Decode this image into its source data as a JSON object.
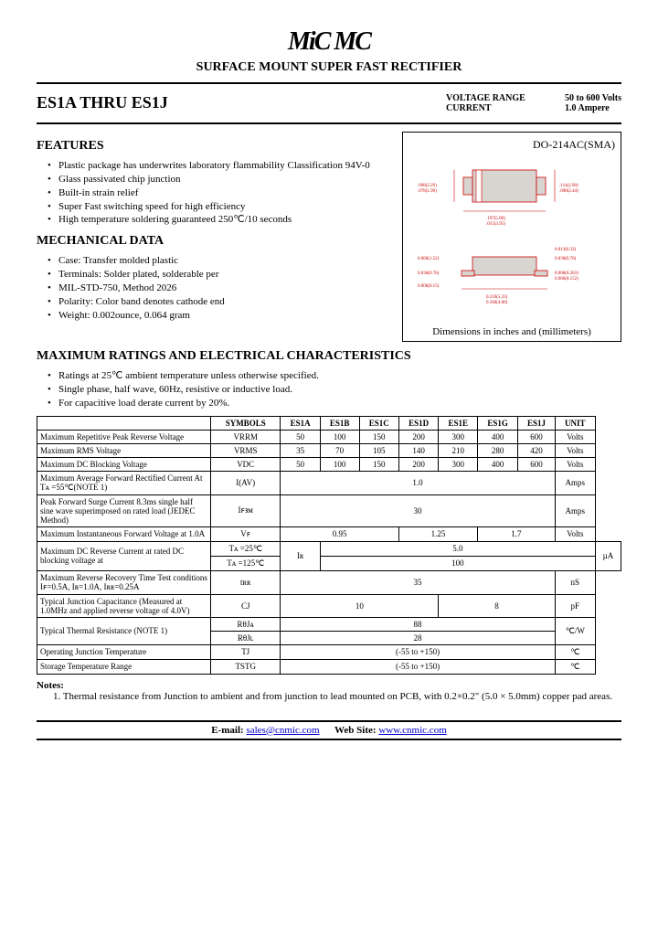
{
  "header": {
    "logo": "MiC MC",
    "subtitle": "SURFACE MOUNT SUPER FAST RECTIFIER"
  },
  "title": {
    "product": "ES1A THRU ES1J",
    "voltage_label": "VOLTAGE RANGE",
    "voltage_val": "50 to 600 Volts",
    "current_label": "CURRENT",
    "current_val": "1.0 Ampere"
  },
  "features": {
    "heading": "FEATURES",
    "items": [
      "Plastic package has underwrites laboratory flammability Classification 94V-0",
      "Glass passivated chip junction",
      "Built-in strain relief",
      "Super Fast switching speed for high efficiency",
      "High temperature soldering guaranteed 250℃/10 seconds"
    ]
  },
  "mechanical": {
    "heading": "MECHANICAL DATA",
    "items": [
      "Case: Transfer molded plastic",
      "Terminals: Solder plated, solderable per",
      "MIL-STD-750, Method 2026",
      "Polarity: Color band denotes cathode end",
      "Weight: 0.002ounce, 0.064 gram"
    ]
  },
  "diagram": {
    "title": "DO-214AC(SMA)",
    "caption": "Dimensions in inches and (millimeters)"
  },
  "ratings": {
    "heading": "MAXIMUM RATINGS AND ELECTRICAL CHARACTERISTICS",
    "notes": [
      "Ratings at 25℃ ambient temperature unless otherwise specified.",
      "Single phase, half wave, 60Hz, resistive or inductive load.",
      "For capacitive load derate current by 20%."
    ]
  },
  "table": {
    "headers": [
      "SYMBOLS",
      "ES1A",
      "ES1B",
      "ES1C",
      "ES1D",
      "ES1E",
      "ES1G",
      "ES1J",
      "UNIT"
    ],
    "rows": [
      {
        "param": "Maximum Repetitive Peak Reverse Voltage",
        "sym": "VRRM",
        "cells": [
          "50",
          "100",
          "150",
          "200",
          "300",
          "400",
          "600"
        ],
        "unit": "Volts"
      },
      {
        "param": "Maximum RMS Voltage",
        "sym": "VRMS",
        "cells": [
          "35",
          "70",
          "105",
          "140",
          "210",
          "280",
          "420"
        ],
        "unit": "Volts"
      },
      {
        "param": "Maximum DC Blocking Voltage",
        "sym": "VDC",
        "cells": [
          "50",
          "100",
          "150",
          "200",
          "300",
          "400",
          "600"
        ],
        "unit": "Volts"
      }
    ],
    "row_iav": {
      "param": "Maximum Average Forward Rectified Current At Tᴀ =55℃(NOTE 1)",
      "sym": "I(AV)",
      "val": "1.0",
      "unit": "Amps"
    },
    "row_ifsm": {
      "param": "Peak Forward Surge Current 8.3ms single half sine wave superimposed on rated load (JEDEC Method)",
      "sym": "Iꜰꜣᴍ",
      "val": "30",
      "unit": "Amps"
    },
    "row_vf": {
      "param": "Maximum Instantaneous Forward Voltage at 1.0A",
      "sym": "Vꜰ",
      "cells": [
        "0.95",
        "1.25",
        "1.7"
      ],
      "spans": [
        3,
        2,
        2
      ],
      "unit": "Volts"
    },
    "row_ir": {
      "param": "Maximum DC Reverse Current at rated DC blocking voltage at",
      "cond1": "Tᴀ =25℃",
      "cond2": "Tᴀ =125℃",
      "sym": "Iʀ",
      "v1": "5.0",
      "v2": "100",
      "unit": "µA"
    },
    "row_trr": {
      "param": "Maximum Reverse Recovery Time Test conditions Iꜰ=0.5A, Iʀ=1.0A, Iʀʀ=0.25A",
      "sym": "tʀʀ",
      "val": "35",
      "unit": "nS"
    },
    "row_cj": {
      "param": "Typical Junction Capacitance (Measured at 1.0MHz and applied reverse voltage of 4.0V)",
      "sym": "CJ",
      "cells": [
        "10",
        "8"
      ],
      "spans": [
        4,
        3
      ],
      "unit": "pF"
    },
    "row_rth": {
      "param": "Typical Thermal Resistance (NOTE 1)",
      "sym1": "RθJᴀ",
      "v1": "88",
      "sym2": "RθJʟ",
      "v2": "28",
      "unit": "℃/W"
    },
    "row_tj": {
      "param": "Operating Junction Temperature",
      "sym": "TJ",
      "val": "(-55 to +150)",
      "unit": "℃"
    },
    "row_tstg": {
      "param": "Storage Temperature Range",
      "sym": "TSTG",
      "val": "(-55 to +150)",
      "unit": "℃"
    }
  },
  "notes": {
    "heading": "Notes:",
    "text": "1. Thermal resistance from Junction to ambient and from junction to lead mounted on PCB, with 0.2×0.2\" (5.0 × 5.0mm) copper pad areas."
  },
  "footer": {
    "email_label": "E-mail:",
    "email": "sales@cnmic.com",
    "web_label": "Web Site:",
    "web": "www.cnmic.com"
  }
}
